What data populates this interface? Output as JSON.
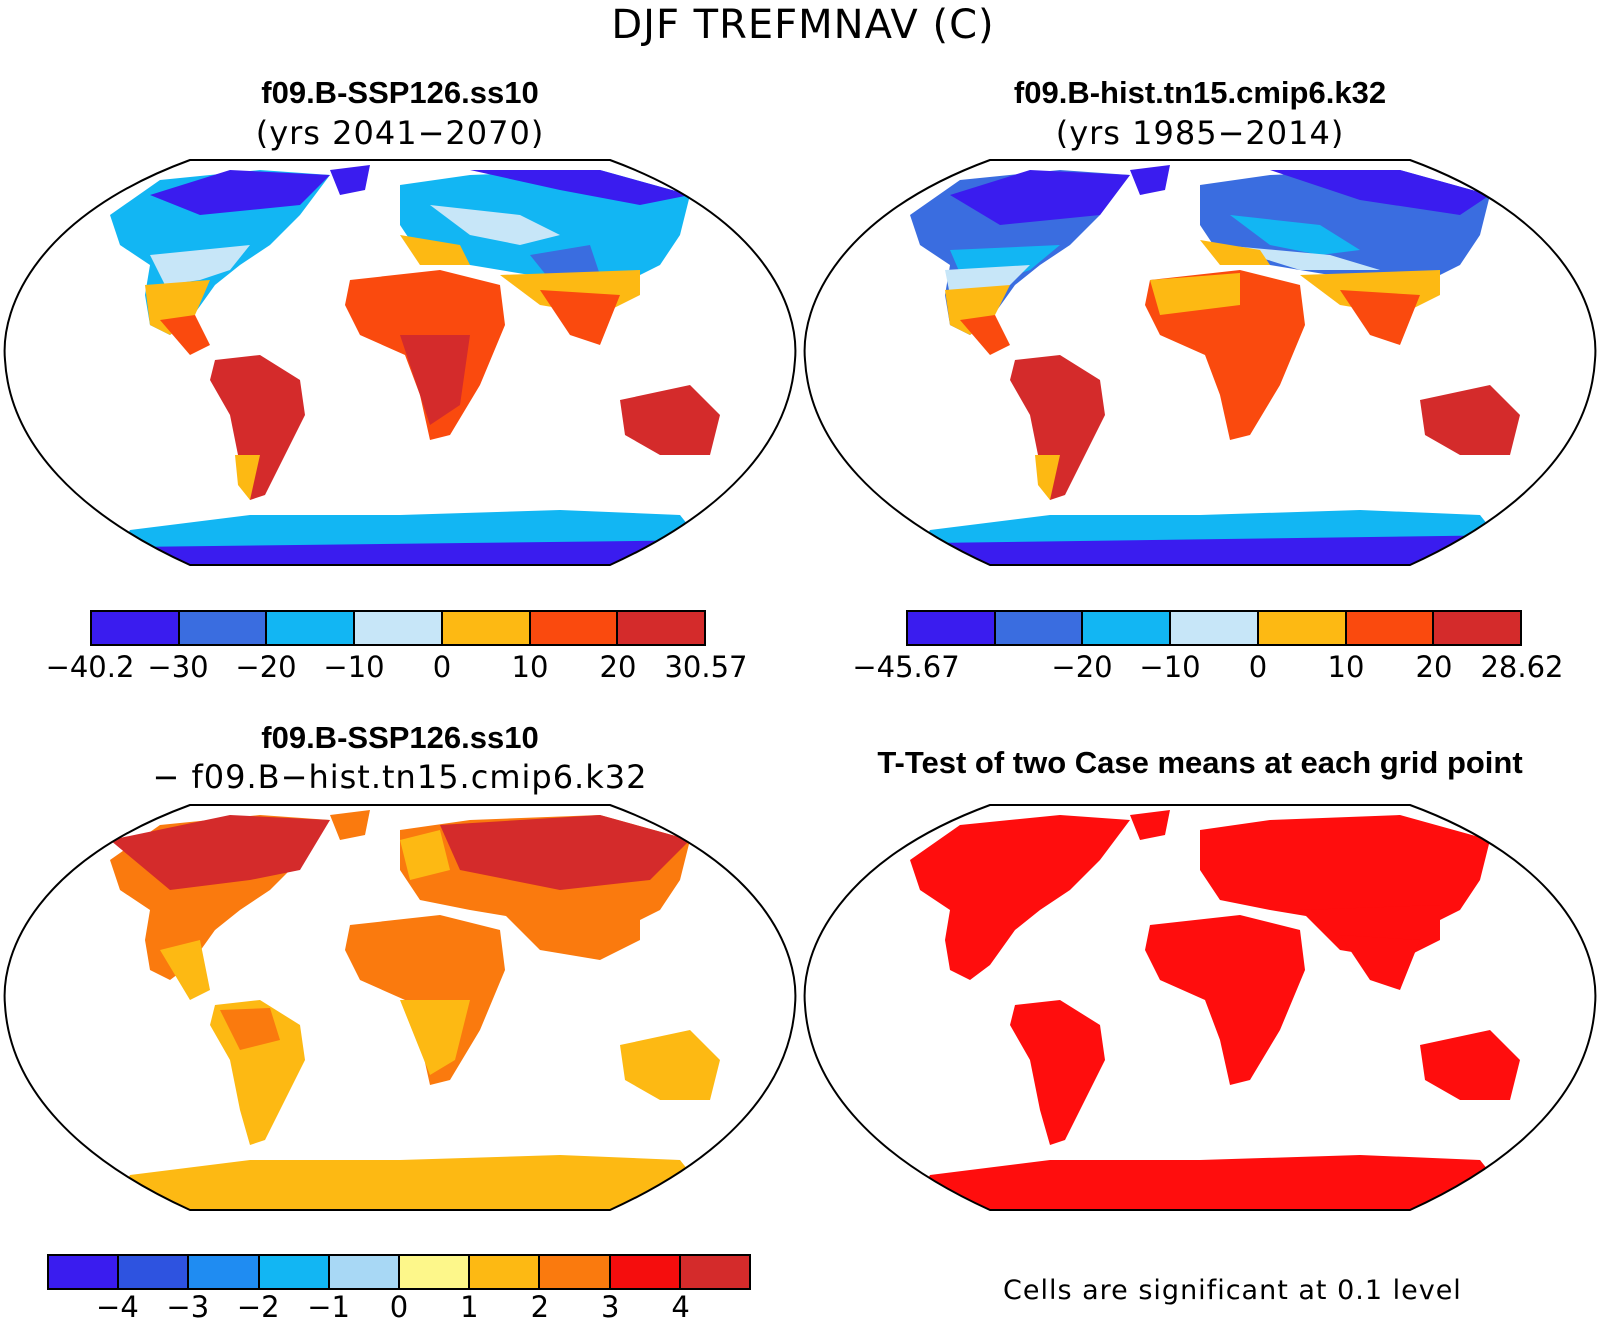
{
  "figure": {
    "main_title": "DJF TREFMNAV (C)"
  },
  "panels": [
    {
      "id": "top-left",
      "title": "f09.B-SSP126.ss10",
      "subtitle": "(yrs 2041−2070)",
      "colorbar": {
        "colors": [
          "#3a1cef",
          "#3a6de0",
          "#12b6f3",
          "#c7e6f8",
          "#fdb913",
          "#fa4a0e",
          "#d42b2b"
        ],
        "tick_labels": [
          "−40.2",
          "−30",
          "−20",
          "−10",
          "0",
          "10",
          "20",
          "30.57"
        ]
      }
    },
    {
      "id": "top-right",
      "title": "f09.B-hist.tn15.cmip6.k32",
      "subtitle": "(yrs 1985−2014)",
      "colorbar": {
        "colors": [
          "#3a1cef",
          "#3a6de0",
          "#12b6f3",
          "#c7e6f8",
          "#fdb913",
          "#fa4a0e",
          "#d42b2b"
        ],
        "tick_labels": [
          "−45.67",
          "",
          "−20",
          "−10",
          "0",
          "10",
          "20",
          "28.62"
        ]
      }
    },
    {
      "id": "bottom-left",
      "title": "f09.B-SSP126.ss10",
      "subtitle": "− f09.B−hist.tn15.cmip6.k32",
      "colorbar": {
        "colors": [
          "#3a1cef",
          "#2e53e0",
          "#1f8cf2",
          "#12b6f3",
          "#a8d8f5",
          "#fdf78a",
          "#fdb913",
          "#fa7a0e",
          "#f50d0d",
          "#d42b2b"
        ],
        "tick_labels": [
          "−4",
          "−3",
          "−2",
          "−1",
          "0",
          "1",
          "2",
          "3",
          "4"
        ]
      }
    },
    {
      "id": "bottom-right",
      "title": "T-Test of two Case means at each grid point",
      "note": "Cells are significant at 0.1 level",
      "fill_color": "#ff0d0d"
    }
  ]
}
